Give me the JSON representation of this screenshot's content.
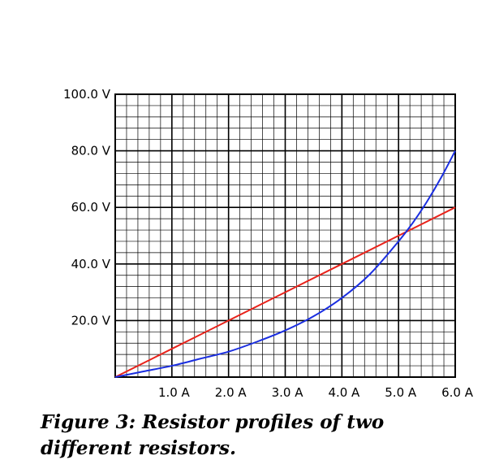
{
  "chart_data": {
    "type": "line",
    "title": "",
    "xlabel": "",
    "ylabel": "",
    "xlim": [
      0,
      6
    ],
    "ylim": [
      0,
      100
    ],
    "grid": true,
    "x_ticks": [
      1,
      2,
      3,
      4,
      5,
      6
    ],
    "x_tick_labels": [
      "1.0 A",
      "2.0 A",
      "3.0 A",
      "4.0 A",
      "5.0 A",
      "6.0 A"
    ],
    "y_ticks": [
      20,
      40,
      60,
      80,
      100
    ],
    "y_tick_labels": [
      "20.0 V",
      "40.0 V",
      "60.0 V",
      "80.0 V",
      "100.0 V"
    ],
    "series": [
      {
        "color": "#e8231b",
        "x": [
          0,
          1,
          2,
          3,
          4,
          5,
          6
        ],
        "y": [
          0,
          10,
          20,
          30,
          40,
          50,
          60
        ]
      },
      {
        "color": "#1a2ee0",
        "x": [
          0,
          0.5,
          1,
          1.5,
          2,
          2.5,
          3,
          3.5,
          4,
          4.5,
          5,
          5.25,
          5.5,
          5.75,
          6
        ],
        "y": [
          0,
          2,
          4,
          6.5,
          9,
          12.5,
          16.5,
          21.5,
          28,
          36.5,
          48,
          54.5,
          62,
          70.5,
          80
        ]
      }
    ]
  },
  "caption": "Figure 3: Resistor profiles of two different resistors."
}
